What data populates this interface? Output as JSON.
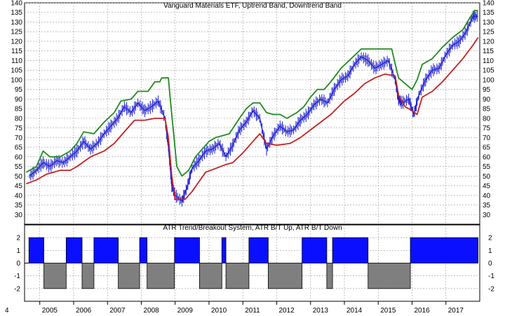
{
  "chart_data": [
    {
      "type": "line",
      "title": "Vanguard Materials ETF, Uptrend Band, Downtrend Band",
      "ylim": [
        25,
        140
      ],
      "yticks": [
        30,
        35,
        40,
        45,
        50,
        55,
        60,
        65,
        70,
        75,
        80,
        85,
        90,
        95,
        100,
        105,
        110,
        115,
        120,
        125,
        130,
        135,
        140
      ],
      "grid": true,
      "series": [
        {
          "color": "#1f1fd0",
          "kind": "price-bars",
          "points": [
            [
              2004.7,
              50
            ],
            [
              2004.9,
              53
            ],
            [
              2005.1,
              57
            ],
            [
              2005.3,
              55
            ],
            [
              2005.5,
              58
            ],
            [
              2005.7,
              57
            ],
            [
              2005.9,
              60
            ],
            [
              2006.1,
              63
            ],
            [
              2006.3,
              68
            ],
            [
              2006.5,
              64
            ],
            [
              2006.7,
              67
            ],
            [
              2006.9,
              72
            ],
            [
              2007.1,
              76
            ],
            [
              2007.3,
              80
            ],
            [
              2007.5,
              86
            ],
            [
              2007.7,
              83
            ],
            [
              2007.9,
              88
            ],
            [
              2008.1,
              84
            ],
            [
              2008.3,
              86
            ],
            [
              2008.5,
              89
            ],
            [
              2008.7,
              80
            ],
            [
              2008.8,
              65
            ],
            [
              2008.9,
              45
            ],
            [
              2009.0,
              40
            ],
            [
              2009.2,
              37
            ],
            [
              2009.35,
              44
            ],
            [
              2009.5,
              54
            ],
            [
              2009.7,
              58
            ],
            [
              2009.9,
              63
            ],
            [
              2010.1,
              64
            ],
            [
              2010.3,
              67
            ],
            [
              2010.5,
              60
            ],
            [
              2010.7,
              66
            ],
            [
              2010.9,
              74
            ],
            [
              2011.1,
              78
            ],
            [
              2011.3,
              84
            ],
            [
              2011.5,
              80
            ],
            [
              2011.7,
              64
            ],
            [
              2011.9,
              71
            ],
            [
              2012.1,
              76
            ],
            [
              2012.3,
              73
            ],
            [
              2012.5,
              74
            ],
            [
              2012.7,
              79
            ],
            [
              2012.9,
              82
            ],
            [
              2013.1,
              87
            ],
            [
              2013.3,
              90
            ],
            [
              2013.5,
              88
            ],
            [
              2013.7,
              95
            ],
            [
              2013.9,
              100
            ],
            [
              2014.1,
              102
            ],
            [
              2014.3,
              108
            ],
            [
              2014.5,
              112
            ],
            [
              2014.7,
              110
            ],
            [
              2014.9,
              106
            ],
            [
              2015.1,
              108
            ],
            [
              2015.3,
              110
            ],
            [
              2015.5,
              100
            ],
            [
              2015.6,
              90
            ],
            [
              2015.7,
              88
            ],
            [
              2015.9,
              90
            ],
            [
              2016.05,
              82
            ],
            [
              2016.2,
              92
            ],
            [
              2016.4,
              100
            ],
            [
              2016.6,
              105
            ],
            [
              2016.8,
              106
            ],
            [
              2017.0,
              113
            ],
            [
              2017.2,
              118
            ],
            [
              2017.4,
              120
            ],
            [
              2017.6,
              125
            ],
            [
              2017.8,
              133
            ],
            [
              2017.95,
              133
            ]
          ]
        },
        {
          "color": "#1f8a1f",
          "kind": "uptrend-band",
          "points": [
            [
              2004.6,
              52
            ],
            [
              2004.9,
              55
            ],
            [
              2005.1,
              63
            ],
            [
              2005.3,
              60
            ],
            [
              2005.6,
              60
            ],
            [
              2005.9,
              63
            ],
            [
              2006.1,
              67
            ],
            [
              2006.3,
              73
            ],
            [
              2006.6,
              72
            ],
            [
              2006.9,
              78
            ],
            [
              2007.2,
              83
            ],
            [
              2007.4,
              89
            ],
            [
              2007.7,
              90
            ],
            [
              2007.9,
              94
            ],
            [
              2008.2,
              94
            ],
            [
              2008.4,
              99
            ],
            [
              2008.55,
              99
            ],
            [
              2008.6,
              101
            ],
            [
              2008.8,
              101
            ],
            [
              2008.85,
              91
            ],
            [
              2008.95,
              73
            ],
            [
              2009.05,
              55
            ],
            [
              2009.2,
              50
            ],
            [
              2009.4,
              53
            ],
            [
              2009.6,
              60
            ],
            [
              2009.8,
              64
            ],
            [
              2010.0,
              68
            ],
            [
              2010.2,
              70
            ],
            [
              2010.4,
              71
            ],
            [
              2010.6,
              72
            ],
            [
              2010.9,
              80
            ],
            [
              2011.1,
              85
            ],
            [
              2011.3,
              88
            ],
            [
              2011.5,
              88
            ],
            [
              2011.7,
              83
            ],
            [
              2011.9,
              82
            ],
            [
              2012.1,
              82
            ],
            [
              2012.3,
              80
            ],
            [
              2012.6,
              83
            ],
            [
              2012.8,
              86
            ],
            [
              2013.0,
              91
            ],
            [
              2013.2,
              95
            ],
            [
              2013.4,
              95
            ],
            [
              2013.6,
              99
            ],
            [
              2013.9,
              106
            ],
            [
              2014.2,
              111
            ],
            [
              2014.5,
              116
            ],
            [
              2014.8,
              116
            ],
            [
              2015.1,
              116
            ],
            [
              2015.4,
              116
            ],
            [
              2015.45,
              112
            ],
            [
              2015.6,
              101
            ],
            [
              2015.8,
              98
            ],
            [
              2016.0,
              95
            ],
            [
              2016.15,
              100
            ],
            [
              2016.3,
              108
            ],
            [
              2016.6,
              111
            ],
            [
              2016.9,
              117
            ],
            [
              2017.2,
              122
            ],
            [
              2017.5,
              126
            ],
            [
              2017.7,
              132
            ],
            [
              2017.85,
              136
            ],
            [
              2017.95,
              136
            ]
          ]
        },
        {
          "color": "#c62020",
          "kind": "downtrend-band",
          "points": [
            [
              2004.6,
              46
            ],
            [
              2004.9,
              48
            ],
            [
              2005.2,
              51
            ],
            [
              2005.6,
              53
            ],
            [
              2005.9,
              53
            ],
            [
              2006.1,
              55
            ],
            [
              2006.5,
              60
            ],
            [
              2006.9,
              63
            ],
            [
              2007.2,
              67
            ],
            [
              2007.5,
              73
            ],
            [
              2007.8,
              79
            ],
            [
              2008.1,
              79
            ],
            [
              2008.4,
              80
            ],
            [
              2008.7,
              80
            ],
            [
              2008.8,
              70
            ],
            [
              2008.9,
              50
            ],
            [
              2009.0,
              38
            ],
            [
              2009.3,
              38
            ],
            [
              2009.5,
              42
            ],
            [
              2009.7,
              47
            ],
            [
              2009.9,
              52
            ],
            [
              2010.2,
              54
            ],
            [
              2010.5,
              56
            ],
            [
              2010.7,
              57
            ],
            [
              2011.0,
              62
            ],
            [
              2011.3,
              68
            ],
            [
              2011.5,
              72
            ],
            [
              2011.7,
              67
            ],
            [
              2012.0,
              66
            ],
            [
              2012.4,
              67
            ],
            [
              2012.7,
              70
            ],
            [
              2013.0,
              74
            ],
            [
              2013.3,
              78
            ],
            [
              2013.6,
              82
            ],
            [
              2014.0,
              89
            ],
            [
              2014.3,
              93
            ],
            [
              2014.6,
              98
            ],
            [
              2014.9,
              101
            ],
            [
              2015.2,
              103
            ],
            [
              2015.5,
              102
            ],
            [
              2015.6,
              92
            ],
            [
              2015.8,
              86
            ],
            [
              2016.0,
              84
            ],
            [
              2016.15,
              82
            ],
            [
              2016.3,
              91
            ],
            [
              2016.6,
              94
            ],
            [
              2016.9,
              99
            ],
            [
              2017.2,
              105
            ],
            [
              2017.5,
              111
            ],
            [
              2017.8,
              118
            ],
            [
              2017.95,
              122
            ]
          ]
        }
      ]
    },
    {
      "type": "bar",
      "title": "ATR Trend/Breakout System, ATR B/T Up, ATR B/T Down",
      "ylim": [
        -3,
        3
      ],
      "yticks": [
        -2,
        -1,
        0,
        1,
        2
      ],
      "grid": true,
      "segments": [
        {
          "x0": 2004.68,
          "x1": 2005.12,
          "value": 2,
          "color": "#0a10ff"
        },
        {
          "x0": 2005.12,
          "x1": 2005.78,
          "value": -2,
          "color": "#7f7f7f"
        },
        {
          "x0": 2005.78,
          "x1": 2006.25,
          "value": 2,
          "color": "#0a10ff"
        },
        {
          "x0": 2006.25,
          "x1": 2006.6,
          "value": -2,
          "color": "#7f7f7f"
        },
        {
          "x0": 2006.6,
          "x1": 2007.32,
          "value": 2,
          "color": "#0a10ff"
        },
        {
          "x0": 2007.32,
          "x1": 2007.95,
          "value": -2,
          "color": "#7f7f7f"
        },
        {
          "x0": 2007.95,
          "x1": 2008.17,
          "value": 2,
          "color": "#0a10ff"
        },
        {
          "x0": 2008.17,
          "x1": 2008.98,
          "value": -2,
          "color": "#7f7f7f"
        },
        {
          "x0": 2008.98,
          "x1": 2009.72,
          "value": 2,
          "color": "#0a10ff"
        },
        {
          "x0": 2009.72,
          "x1": 2010.38,
          "value": -2,
          "color": "#7f7f7f"
        },
        {
          "x0": 2010.38,
          "x1": 2010.5,
          "value": 2,
          "color": "#0a10ff"
        },
        {
          "x0": 2010.5,
          "x1": 2011.18,
          "value": -2,
          "color": "#7f7f7f"
        },
        {
          "x0": 2011.18,
          "x1": 2011.75,
          "value": 2,
          "color": "#0a10ff"
        },
        {
          "x0": 2011.75,
          "x1": 2012.75,
          "value": -2,
          "color": "#7f7f7f"
        },
        {
          "x0": 2012.75,
          "x1": 2013.48,
          "value": 2,
          "color": "#0a10ff"
        },
        {
          "x0": 2013.48,
          "x1": 2013.65,
          "value": -2,
          "color": "#7f7f7f"
        },
        {
          "x0": 2013.65,
          "x1": 2014.7,
          "value": 2,
          "color": "#0a10ff"
        },
        {
          "x0": 2014.7,
          "x1": 2015.95,
          "value": -2,
          "color": "#7f7f7f"
        },
        {
          "x0": 2015.95,
          "x1": 2017.95,
          "value": 2,
          "color": "#0a10ff"
        }
      ]
    }
  ],
  "x_axis": {
    "start_label": "4",
    "labels": [
      {
        "x": 2005,
        "text": "2005"
      },
      {
        "x": 2006,
        "text": "2006"
      },
      {
        "x": 2007,
        "text": "2007"
      },
      {
        "x": 2008,
        "text": "2008"
      },
      {
        "x": 2009,
        "text": "2009"
      },
      {
        "x": 2010,
        "text": "2010"
      },
      {
        "x": 2011,
        "text": "2011"
      },
      {
        "x": 2012,
        "text": "2012"
      },
      {
        "x": 2013,
        "text": "2013"
      },
      {
        "x": 2014,
        "text": "2014"
      },
      {
        "x": 2015,
        "text": "2015"
      },
      {
        "x": 2016,
        "text": "2016"
      },
      {
        "x": 2017,
        "text": "2017"
      }
    ],
    "xlim": [
      2004.55,
      2018.0
    ]
  }
}
